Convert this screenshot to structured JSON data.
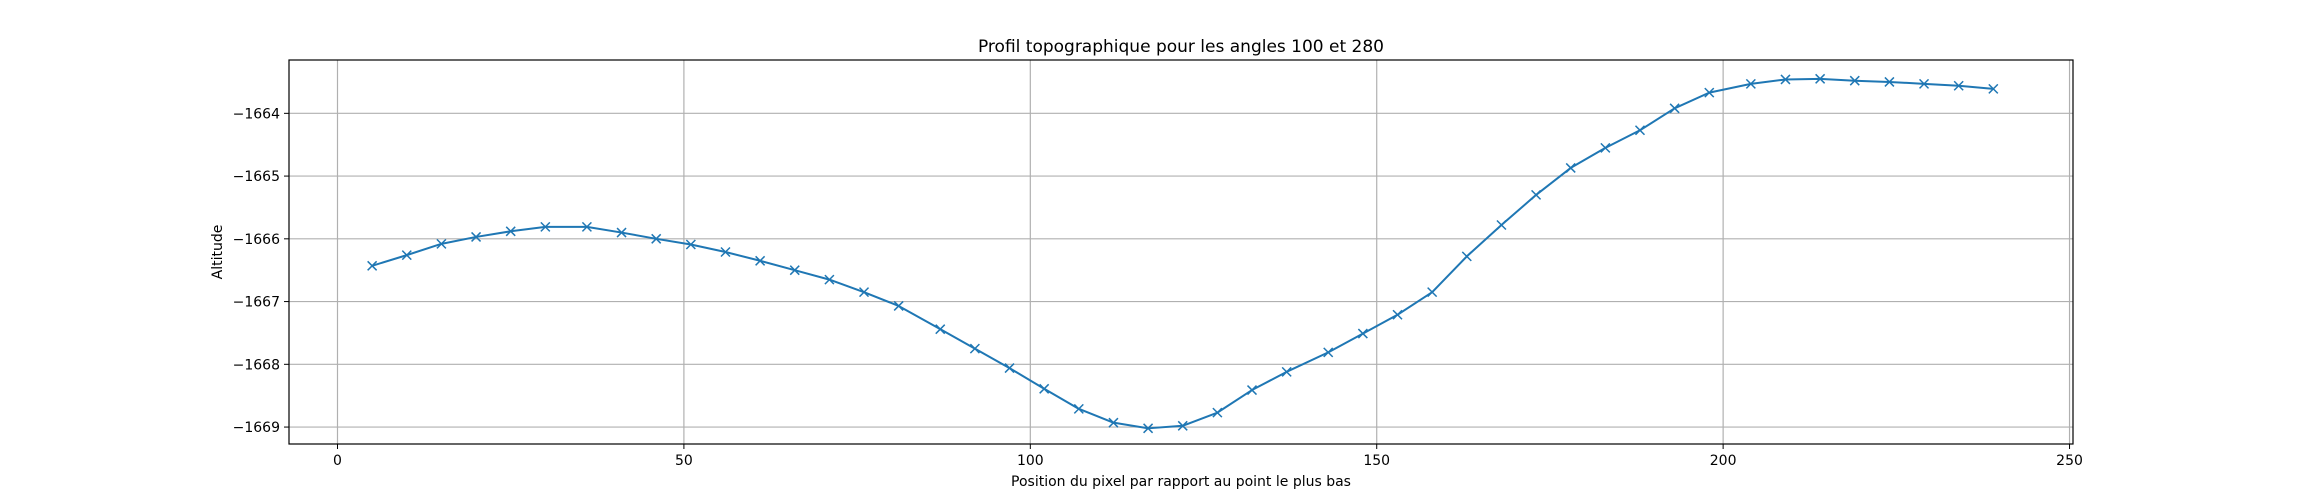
{
  "chart_data": {
    "type": "line",
    "title": "Profil topographique pour les angles 100 et 280",
    "xlabel": "Position du pixel par rapport au point le plus bas",
    "ylabel": "Altitude",
    "xlim": [
      -7,
      250.5
    ],
    "ylim": [
      -1669.27,
      -1663.15
    ],
    "xticks": [
      0,
      50,
      100,
      150,
      200,
      250
    ],
    "yticks": [
      -1669,
      -1668,
      -1667,
      -1666,
      -1665,
      -1664
    ],
    "xtick_labels": [
      "0",
      "50",
      "100",
      "150",
      "200",
      "250"
    ],
    "ytick_labels": [
      "−1669",
      "−1668",
      "−1667",
      "−1666",
      "−1665",
      "−1664"
    ],
    "grid": true,
    "marker": "x",
    "series_color": "#1f77b4",
    "series": [
      {
        "x": [
          5,
          10,
          15,
          20,
          25,
          30,
          36,
          41,
          46,
          51,
          56,
          61,
          66,
          71,
          76,
          81,
          87,
          92,
          97,
          102,
          107,
          112,
          117,
          122,
          127,
          132,
          137,
          143,
          148,
          153,
          158,
          163,
          168,
          173,
          178,
          183,
          188,
          193,
          198,
          204,
          209,
          214,
          219,
          224,
          229,
          234,
          239
        ],
        "y": [
          -1666.43,
          -1666.26,
          -1666.08,
          -1665.97,
          -1665.88,
          -1665.81,
          -1665.81,
          -1665.9,
          -1666.0,
          -1666.09,
          -1666.21,
          -1666.35,
          -1666.5,
          -1666.65,
          -1666.85,
          -1667.07,
          -1667.44,
          -1667.75,
          -1668.06,
          -1668.39,
          -1668.71,
          -1668.93,
          -1669.02,
          -1668.98,
          -1668.77,
          -1668.41,
          -1668.12,
          -1667.81,
          -1667.51,
          -1667.21,
          -1666.85,
          -1666.28,
          -1665.78,
          -1665.3,
          -1664.87,
          -1664.55,
          -1664.27,
          -1663.92,
          -1663.67,
          -1663.53,
          -1663.46,
          -1663.45,
          -1663.48,
          -1663.5,
          -1663.53,
          -1663.56,
          -1663.61
        ]
      }
    ]
  }
}
